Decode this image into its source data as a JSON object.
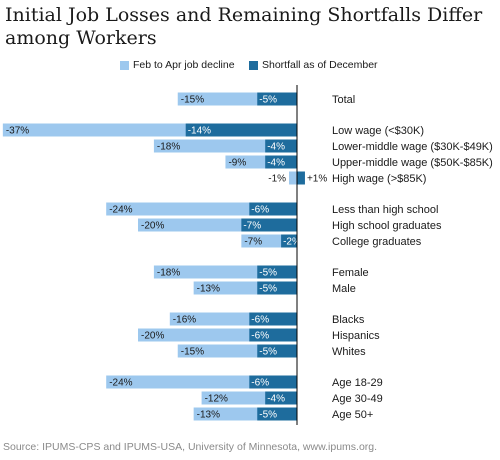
{
  "page": {
    "title": "Initial Job Losses and Remaining Shortfalls Differ among Workers",
    "source": "Source: IPUMS-CPS and IPUMS-USA, University of Minnesota, www.ipums.org."
  },
  "colors": {
    "decline": "#9dc8ee",
    "shortfall": "#1e6c9d",
    "axis": "#000000"
  },
  "chart_data": {
    "type": "bar",
    "orientation": "horizontal",
    "title": "Initial Job Losses and Remaining Shortfalls Differ among Workers",
    "legend_position": "top",
    "grid": false,
    "xlim": [
      -37,
      1
    ],
    "categories": [
      "Total",
      "Low wage (<$30K)",
      "Lower-middle wage ($30K-$49K)",
      "Upper-middle wage ($50K-$85K)",
      "High wage (>$85K)",
      "Less than high school",
      "High school graduates",
      "College graduates",
      "Female",
      "Male",
      "Blacks",
      "Hispanics",
      "Whites",
      "Age 18-29",
      "Age 30-49",
      "Age 50+"
    ],
    "series": [
      {
        "name": "Feb to Apr job decline",
        "values": [
          -15,
          -37,
          -18,
          -9,
          -1,
          -24,
          -20,
          -7,
          -18,
          -13,
          -16,
          -20,
          -15,
          -24,
          -12,
          -13
        ],
        "labels": [
          "-15%",
          "-37%",
          "-18%",
          "-9%",
          "-1%",
          "-24%",
          "-20%",
          "-7%",
          "-18%",
          "-13%",
          "-16%",
          "-20%",
          "-15%",
          "-24%",
          "-12%",
          "-13%"
        ]
      },
      {
        "name": "Shortfall as of December",
        "values": [
          -5,
          -14,
          -4,
          -4,
          1,
          -6,
          -7,
          -2,
          -5,
          -5,
          -6,
          -6,
          -5,
          -6,
          -4,
          -5
        ],
        "labels": [
          "-5%",
          "-14%",
          "-4%",
          "-4%",
          "+1%",
          "-6%",
          "-7%",
          "-2%",
          "-5%",
          "-5%",
          "-6%",
          "-6%",
          "-5%",
          "-6%",
          "-4%",
          "-5%"
        ]
      }
    ]
  }
}
